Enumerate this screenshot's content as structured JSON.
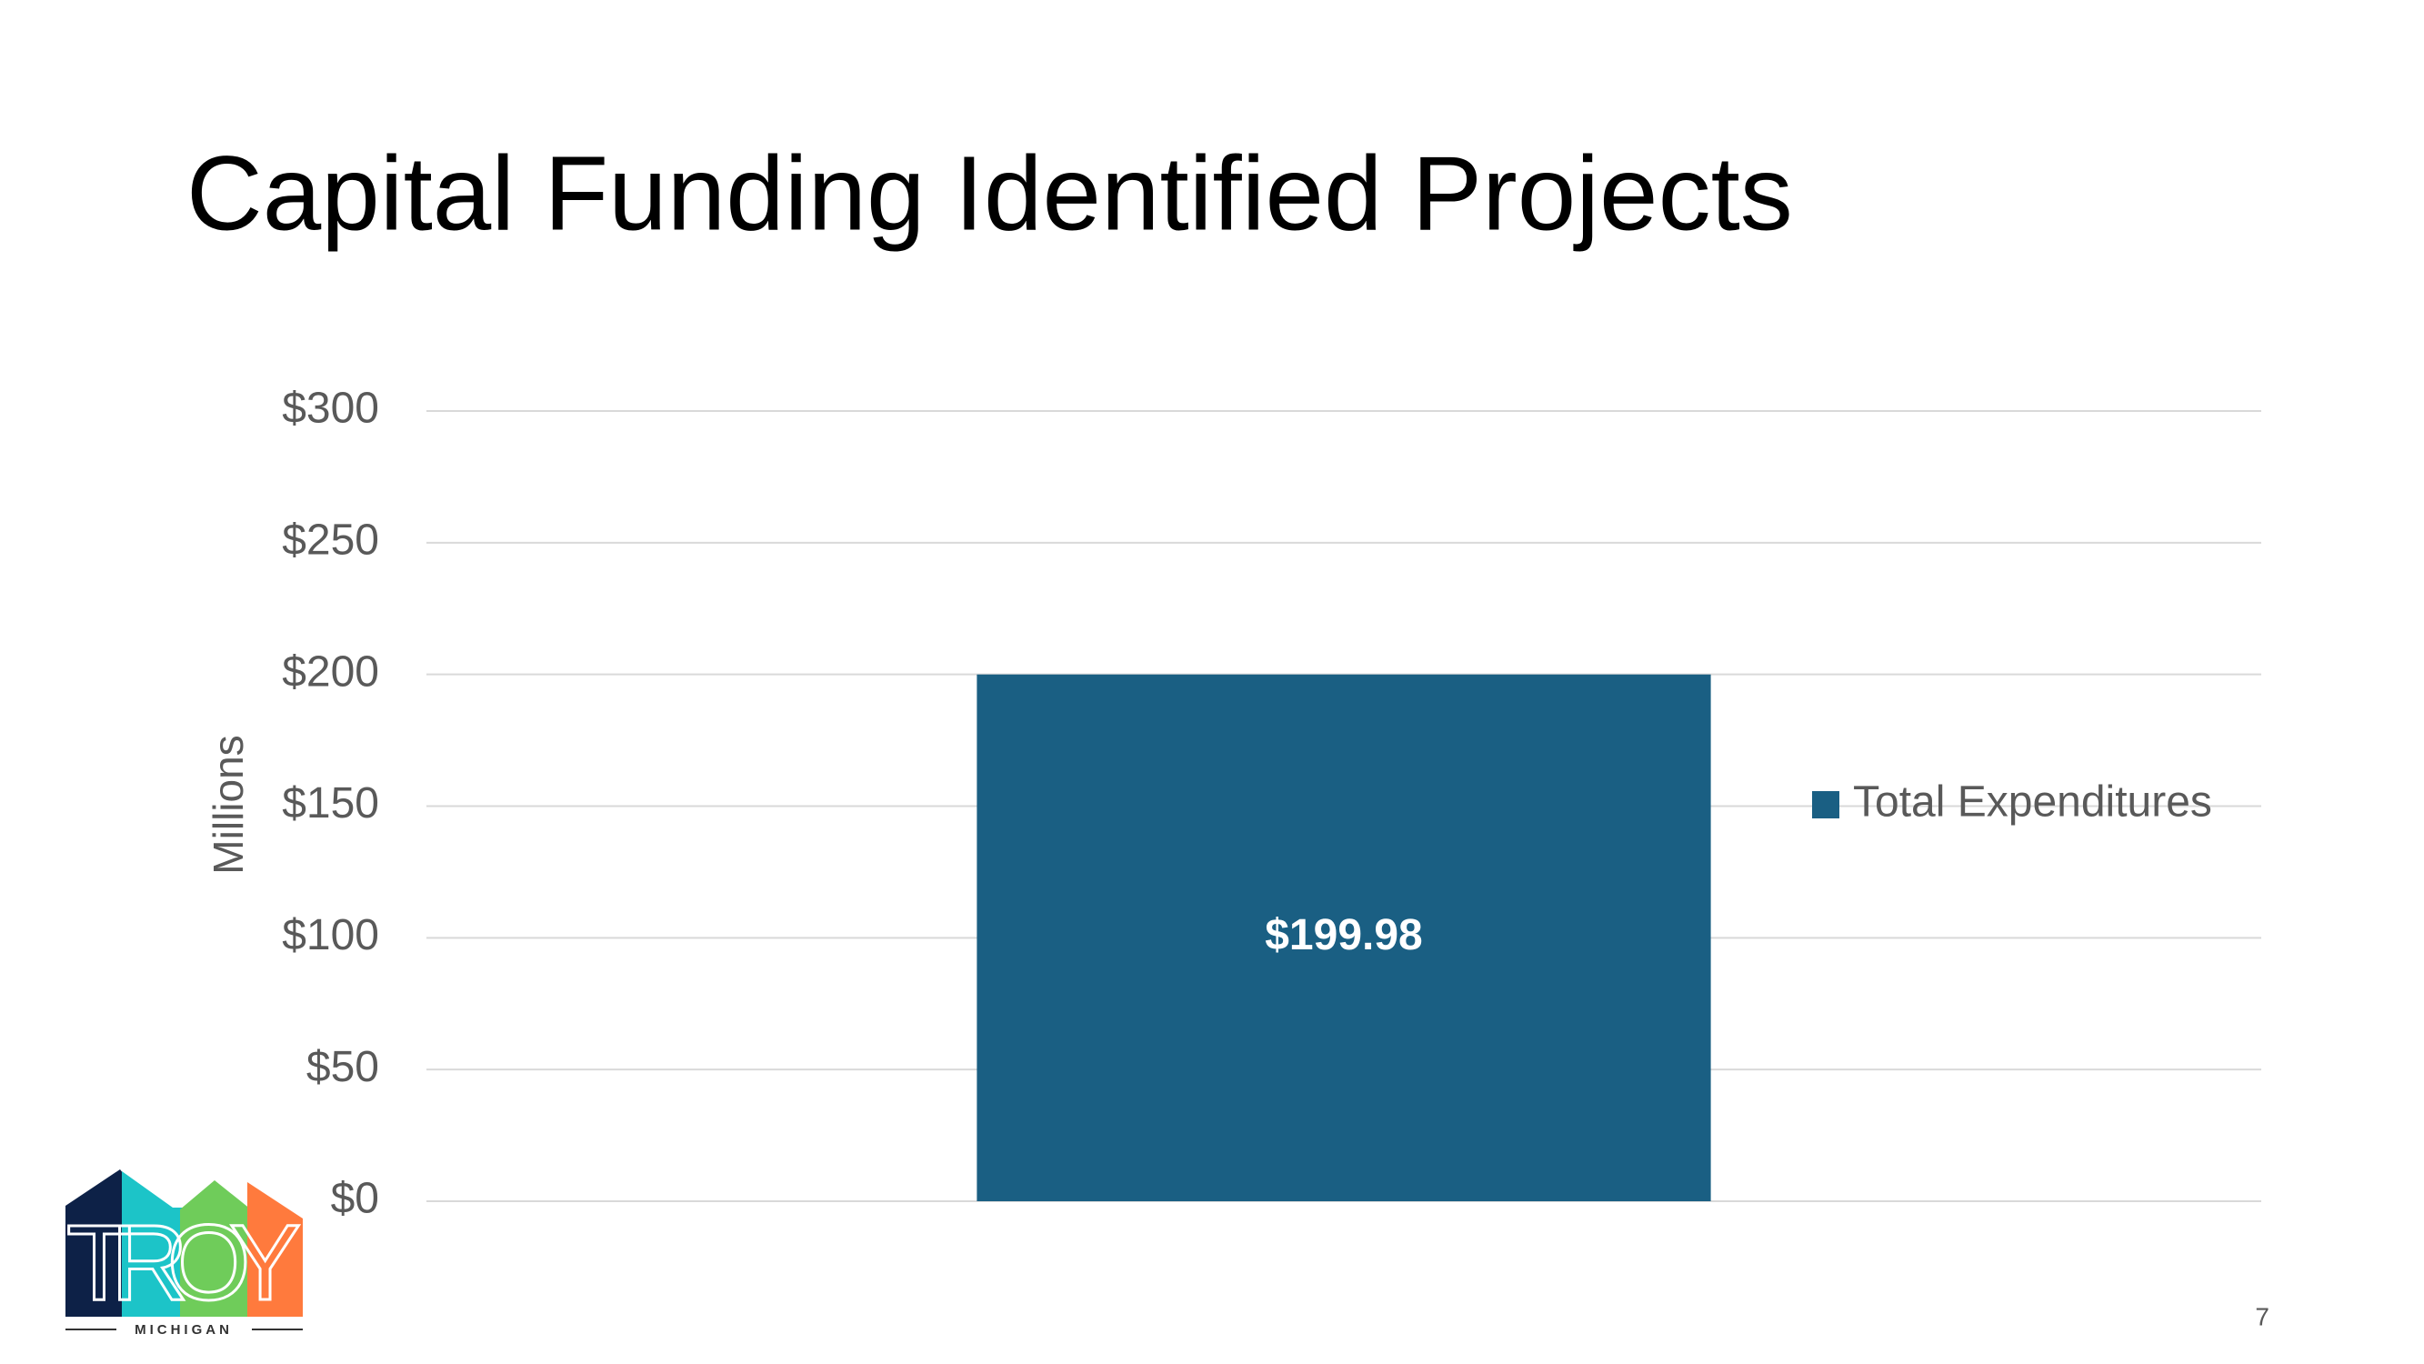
{
  "chart_data": {
    "type": "bar",
    "title": "Capital Funding Identified Projects",
    "ylabel": "Millions",
    "categories": [
      null
    ],
    "series": [
      {
        "name": "Total Expenditures",
        "color": "#1a5f83",
        "values": [
          199.98
        ],
        "value_labels": [
          "$199.98"
        ]
      }
    ],
    "ylim": [
      0,
      300
    ],
    "yticks": [
      {
        "value": 0,
        "label": "$0"
      },
      {
        "value": 50,
        "label": "$50"
      },
      {
        "value": 100,
        "label": "$100"
      },
      {
        "value": 150,
        "label": "$150"
      },
      {
        "value": 200,
        "label": "$200"
      },
      {
        "value": 250,
        "label": "$250"
      },
      {
        "value": 300,
        "label": "$300"
      }
    ],
    "grid": true,
    "legend": "right"
  },
  "page_number": "7",
  "logo": {
    "name": "TROY",
    "subtitle": "MICHIGAN"
  }
}
